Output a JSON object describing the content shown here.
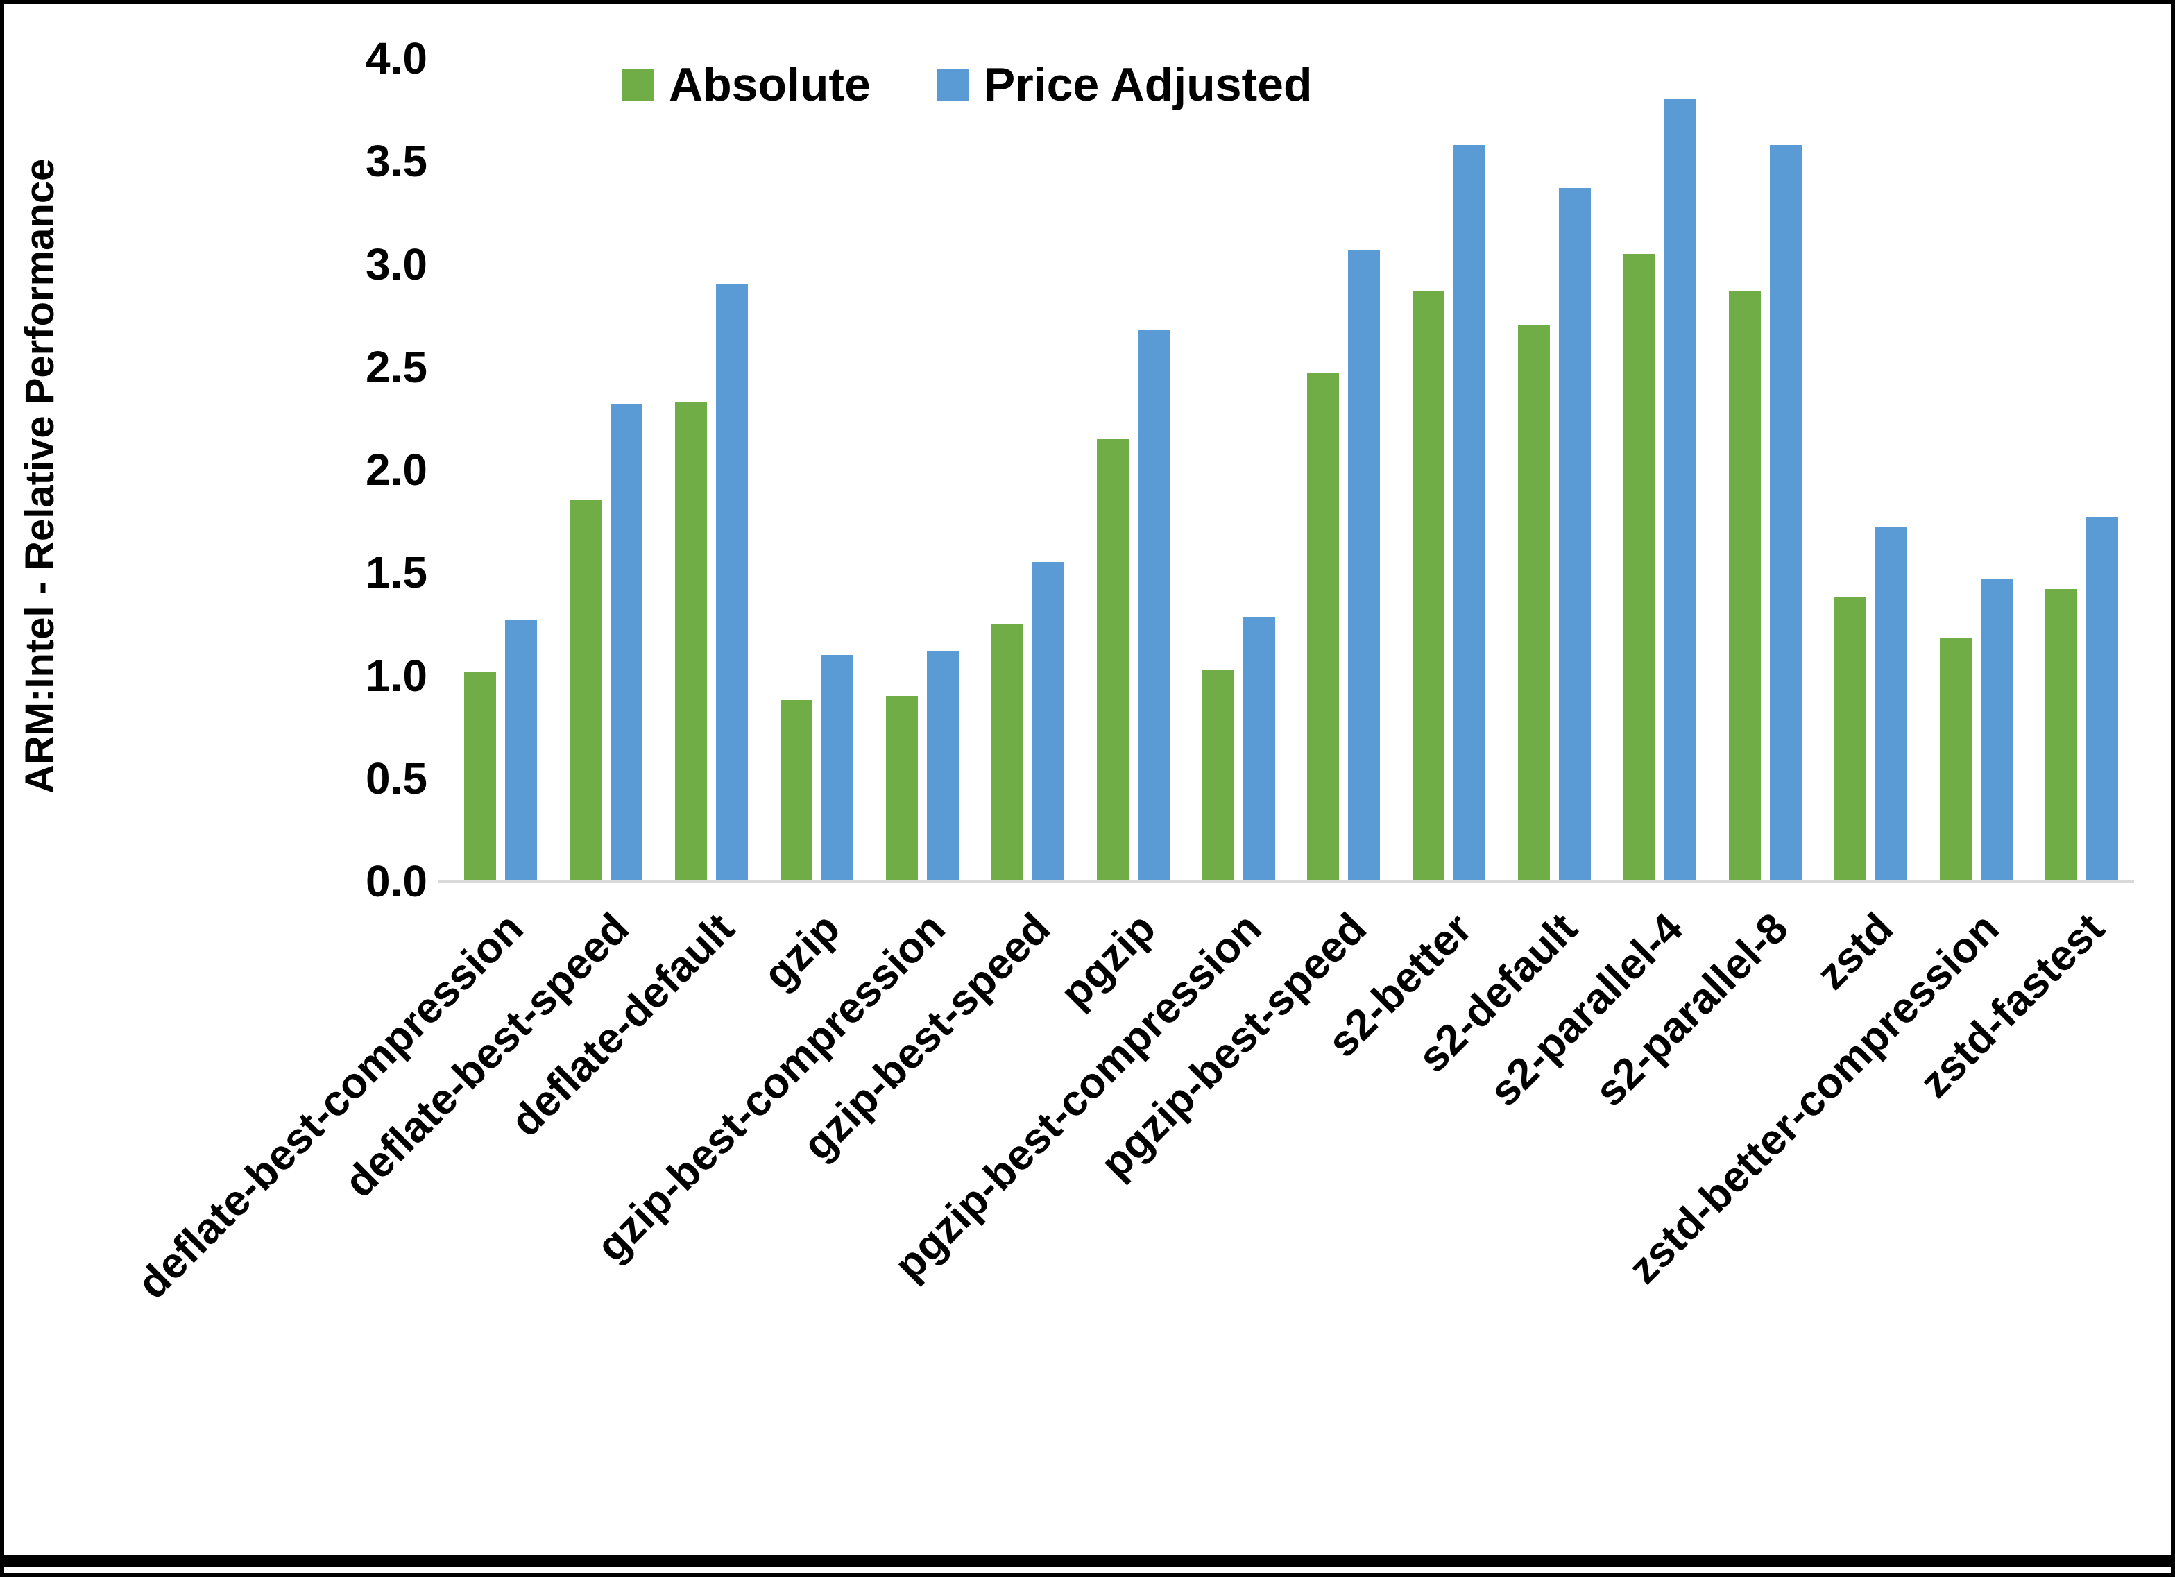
{
  "chart_data": {
    "type": "bar",
    "title": "",
    "xlabel": "",
    "ylabel": "ARM:Intel - Relative Performance",
    "ylim": [
      0,
      4.0
    ],
    "ytick_step": 0.5,
    "yticks": [
      "0.0",
      "0.5",
      "1.0",
      "1.5",
      "2.0",
      "2.5",
      "3.0",
      "3.5",
      "4.0"
    ],
    "grid": false,
    "legend_position": "top-center",
    "categories": [
      "deflate-best-compression",
      "deflate-best-speed",
      "deflate-default",
      "gzip",
      "gzip-best-compression",
      "gzip-best-speed",
      "pgzip",
      "pgzip-best-compression",
      "pgzip-best-speed",
      "s2-better",
      "s2-default",
      "s2-parallel-4",
      "s2-parallel-8",
      "zstd",
      "zstd-better-compression",
      "zstd-fastest"
    ],
    "series": [
      {
        "name": "Absolute",
        "color": "#70AD47",
        "values": [
          1.02,
          1.85,
          2.33,
          0.88,
          0.9,
          1.25,
          2.15,
          1.03,
          2.47,
          2.87,
          2.7,
          3.05,
          2.87,
          1.38,
          1.18,
          1.42
        ]
      },
      {
        "name": "Price Adjusted",
        "color": "#5B9BD5",
        "values": [
          1.27,
          2.32,
          2.9,
          1.1,
          1.12,
          1.55,
          2.68,
          1.28,
          3.07,
          3.58,
          3.37,
          3.8,
          3.58,
          1.72,
          1.47,
          1.77
        ]
      }
    ],
    "axis_line_color": "#d9d9d9",
    "text_color": "#000000"
  }
}
